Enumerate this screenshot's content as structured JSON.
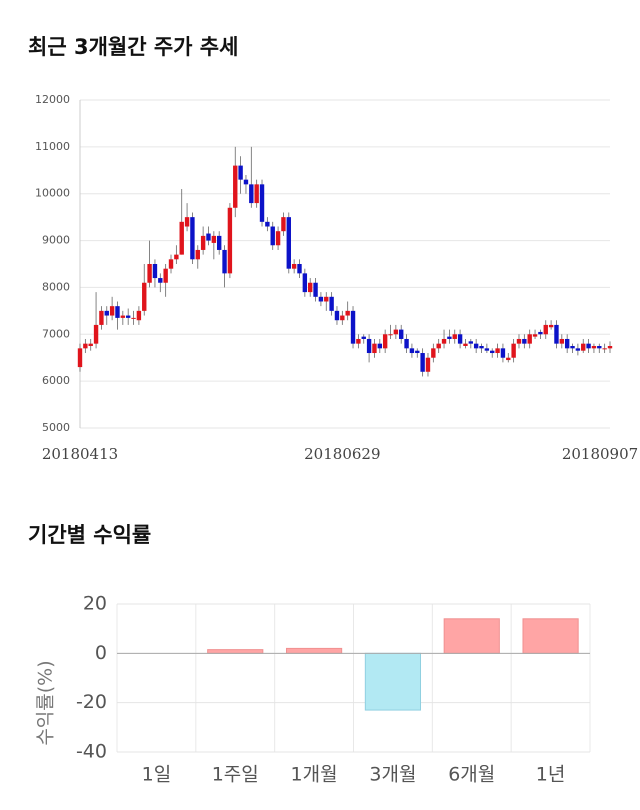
{
  "chart_data": [
    {
      "type": "candlestick",
      "title": "최근 3개월간 주가 추세",
      "categories": [
        "20180413",
        null,
        null,
        null,
        null,
        null,
        null,
        null,
        null,
        null,
        null,
        null,
        null,
        null,
        null,
        null,
        null,
        null,
        null,
        null,
        null,
        null,
        null,
        null,
        null,
        null,
        null,
        null,
        null,
        null,
        null,
        null,
        null,
        null,
        null,
        null,
        null,
        null,
        null,
        null,
        null,
        null,
        null,
        null,
        null,
        null,
        null,
        null,
        null,
        "20180629",
        null,
        null,
        null,
        null,
        null,
        null,
        null,
        null,
        null,
        null,
        null,
        null,
        null,
        null,
        null,
        null,
        null,
        null,
        null,
        null,
        null,
        null,
        null,
        null,
        null,
        null,
        null,
        null,
        null,
        null,
        null,
        null,
        null,
        null,
        null,
        null,
        null,
        null,
        null,
        null,
        null,
        null,
        null,
        null,
        null,
        null,
        null,
        null,
        null,
        "20180907"
      ],
      "open": [
        6300,
        6700,
        6750,
        6800,
        7200,
        7500,
        7400,
        7600,
        7350,
        7400,
        7350,
        7300,
        7500,
        8100,
        8500,
        8200,
        8100,
        8400,
        8600,
        8700,
        9300,
        9500,
        8600,
        8800,
        9150,
        8950,
        9100,
        8800,
        8300,
        9700,
        10600,
        10300,
        10200,
        9800,
        10200,
        9400,
        9300,
        8900,
        9200,
        9500,
        8400,
        8500,
        8300,
        7900,
        8100,
        7800,
        7700,
        7800,
        7500,
        7300,
        7400,
        7500,
        6800,
        6950,
        6900,
        6600,
        6800,
        6700,
        7000,
        7000,
        7100,
        6900,
        6700,
        6650,
        6600,
        6200,
        6500,
        6700,
        6800,
        6950,
        6900,
        7000,
        6750,
        6850,
        6800,
        6750,
        6700,
        6650,
        6600,
        6700,
        6450,
        6500,
        6800,
        6900,
        6800,
        6950,
        7050,
        7000,
        7150,
        7200,
        6800,
        6900,
        6750,
        6700,
        6650,
        6800,
        6700,
        6750,
        6700,
        6700
      ],
      "high": [
        6800,
        6900,
        6900,
        7900,
        7600,
        7600,
        7800,
        7700,
        7500,
        7550,
        7500,
        7600,
        8500,
        9000,
        8600,
        8300,
        8500,
        8700,
        8900,
        10100,
        9800,
        9600,
        8900,
        9300,
        9300,
        9200,
        9200,
        8900,
        9800,
        11000,
        10800,
        10400,
        11000,
        10300,
        10300,
        9500,
        9400,
        9300,
        9600,
        9600,
        8600,
        8600,
        8400,
        8200,
        8200,
        7900,
        7900,
        7900,
        7600,
        7500,
        7700,
        7600,
        7000,
        7000,
        7000,
        6900,
        6900,
        7100,
        7200,
        7200,
        7200,
        7000,
        6800,
        6700,
        6700,
        6600,
        6800,
        6900,
        7100,
        7100,
        7100,
        7100,
        6900,
        6900,
        6900,
        6800,
        6800,
        6700,
        6800,
        6800,
        6600,
        6900,
        7000,
        7000,
        7100,
        7100,
        7100,
        7300,
        7300,
        7300,
        7000,
        7000,
        6800,
        6800,
        6900,
        6900,
        6800,
        6800,
        6800,
        6850
      ],
      "low": [
        6200,
        6600,
        6650,
        6700,
        7100,
        7200,
        7300,
        7100,
        7200,
        7200,
        7200,
        7200,
        7400,
        8000,
        8000,
        7900,
        7800,
        8300,
        8500,
        8700,
        9200,
        8500,
        8400,
        8700,
        8900,
        8600,
        8700,
        8000,
        8200,
        9500,
        10000,
        10000,
        9700,
        9700,
        9300,
        9200,
        8800,
        8800,
        9100,
        8300,
        8300,
        8200,
        7800,
        7800,
        7700,
        7600,
        7500,
        7400,
        7200,
        7200,
        7300,
        6700,
        6700,
        6800,
        6400,
        6500,
        6600,
        6600,
        6900,
        6900,
        6800,
        6600,
        6500,
        6500,
        6100,
        6100,
        6400,
        6600,
        6700,
        6800,
        6800,
        6700,
        6700,
        6700,
        6600,
        6600,
        6600,
        6500,
        6500,
        6400,
        6400,
        6400,
        6700,
        6700,
        6700,
        6900,
        6900,
        6900,
        7100,
        6700,
        6700,
        6600,
        6600,
        6550,
        6600,
        6600,
        6600,
        6600,
        6600,
        6600
      ],
      "close": [
        6700,
        6800,
        6800,
        7200,
        7500,
        7400,
        7600,
        7350,
        7400,
        7350,
        7350,
        7500,
        8100,
        8500,
        8200,
        8100,
        8400,
        8600,
        8700,
        9400,
        9500,
        8600,
        8800,
        9100,
        9000,
        9100,
        8800,
        8300,
        9700,
        10600,
        10300,
        10200,
        9800,
        10200,
        9400,
        9300,
        8900,
        9200,
        9500,
        8400,
        8500,
        8300,
        7900,
        8100,
        7800,
        7700,
        7800,
        7500,
        7300,
        7400,
        7500,
        6800,
        6900,
        6900,
        6600,
        6800,
        6700,
        7000,
        7000,
        7100,
        6900,
        6700,
        6600,
        6600,
        6200,
        6500,
        6700,
        6800,
        6900,
        6900,
        7000,
        6800,
        6800,
        6800,
        6700,
        6700,
        6650,
        6600,
        6700,
        6500,
        6500,
        6800,
        6900,
        6800,
        7000,
        7000,
        7000,
        7200,
        7200,
        6800,
        6900,
        6700,
        6700,
        6650,
        6800,
        6700,
        6750,
        6700,
        6700,
        6750
      ],
      "up_color": "#e0141c",
      "down_color": "#0c12c8",
      "ylim": [
        5000,
        12000
      ],
      "yticks": [
        5000,
        6000,
        7000,
        8000,
        9000,
        10000,
        11000,
        12000
      ],
      "grid": true
    },
    {
      "type": "bar",
      "title": "기간별 수익률",
      "y_label": "수익률(%)",
      "categories": [
        "1일",
        "1주일",
        "1개월",
        "3개월",
        "6개월",
        "1년"
      ],
      "values": [
        0,
        1.5,
        2,
        -23,
        14,
        14
      ],
      "positive_color": "#ffa5a5",
      "negative_color": "#b2e9f3",
      "ylim": [
        -40,
        20
      ],
      "yticks": [
        -40,
        -20,
        0,
        20
      ],
      "grid": true
    }
  ]
}
